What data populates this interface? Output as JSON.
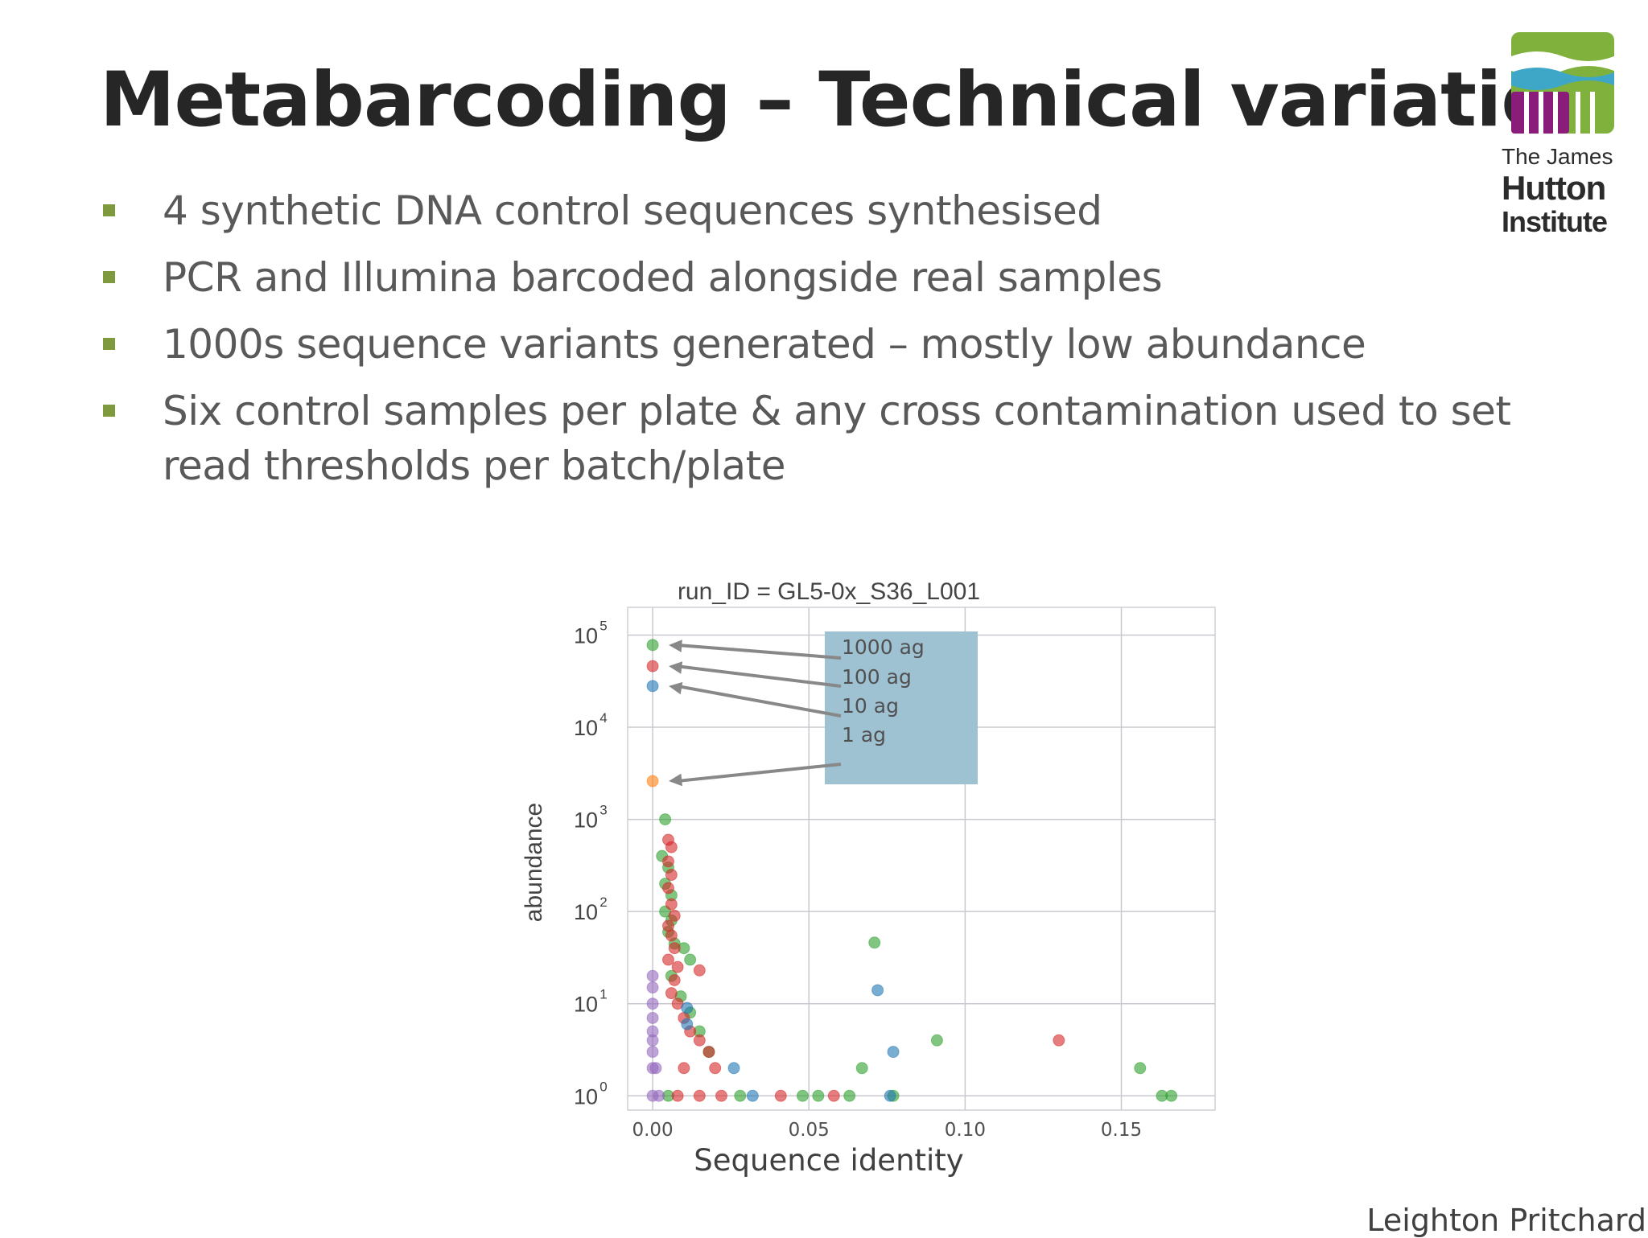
{
  "slide": {
    "title": "Metabarcoding – Technical variation",
    "bullets": [
      "4 synthetic DNA control sequences synthesised",
      "PCR and Illumina barcoded alongside real samples",
      "1000s sequence variants generated – mostly low abundance",
      "Six control samples per plate & any cross contamination used to set read thresholds per batch/plate"
    ],
    "author": "Leighton Pritchard",
    "logo": {
      "line1": "The James",
      "line2": "Hutton",
      "line3": "Institute",
      "colors": {
        "green": "#7fb13c",
        "blue": "#3ea7c8",
        "purple": "#8a1d7a"
      }
    },
    "bullet_color": "#7f9a3c"
  },
  "chart_data": {
    "type": "scatter",
    "title": "run_ID = GL5-0x_S36_L001",
    "xlabel": "Sequence identity",
    "ylabel": "abundance",
    "xlim": [
      -0.008,
      0.18
    ],
    "ylim": [
      0.7,
      200000
    ],
    "yscale": "log",
    "xticks": [
      0.0,
      0.05,
      0.1,
      0.15
    ],
    "xtick_labels": [
      "0.00",
      "0.05",
      "0.10",
      "0.15"
    ],
    "yticks": [
      1,
      10,
      100,
      1000,
      10000,
      100000
    ],
    "ytick_labels": [
      {
        "base": "10",
        "exp": "0"
      },
      {
        "base": "10",
        "exp": "1"
      },
      {
        "base": "10",
        "exp": "2"
      },
      {
        "base": "10",
        "exp": "3"
      },
      {
        "base": "10",
        "exp": "4"
      },
      {
        "base": "10",
        "exp": "5"
      }
    ],
    "grid": true,
    "series": [
      {
        "color": "#2ca02c",
        "points": [
          [
            0,
            78000
          ],
          [
            0.004,
            1000
          ],
          [
            0.003,
            400
          ],
          [
            0.005,
            300
          ],
          [
            0.004,
            200
          ],
          [
            0.006,
            150
          ],
          [
            0.004,
            100
          ],
          [
            0.006,
            80
          ],
          [
            0.005,
            60
          ],
          [
            0.007,
            45
          ],
          [
            0.01,
            40
          ],
          [
            0.012,
            30
          ],
          [
            0.006,
            20
          ],
          [
            0.009,
            12
          ],
          [
            0.012,
            8
          ],
          [
            0.015,
            5
          ],
          [
            0.018,
            3
          ],
          [
            0.005,
            1
          ],
          [
            0.028,
            1
          ],
          [
            0.048,
            1
          ],
          [
            0.053,
            1
          ],
          [
            0.063,
            1
          ],
          [
            0.067,
            2
          ],
          [
            0.071,
            46
          ],
          [
            0.077,
            1
          ],
          [
            0.091,
            4
          ],
          [
            0.156,
            2
          ],
          [
            0.163,
            1
          ],
          [
            0.166,
            1
          ]
        ]
      },
      {
        "color": "#d62728",
        "points": [
          [
            0,
            46000
          ],
          [
            0.005,
            600
          ],
          [
            0.006,
            500
          ],
          [
            0.005,
            350
          ],
          [
            0.006,
            250
          ],
          [
            0.005,
            180
          ],
          [
            0.006,
            120
          ],
          [
            0.007,
            90
          ],
          [
            0.005,
            70
          ],
          [
            0.006,
            55
          ],
          [
            0.007,
            40
          ],
          [
            0.005,
            30
          ],
          [
            0.008,
            25
          ],
          [
            0.015,
            23
          ],
          [
            0.007,
            18
          ],
          [
            0.006,
            13
          ],
          [
            0.008,
            10
          ],
          [
            0.01,
            7
          ],
          [
            0.012,
            5
          ],
          [
            0.015,
            4
          ],
          [
            0.018,
            3
          ],
          [
            0.01,
            2
          ],
          [
            0.02,
            2
          ],
          [
            0.008,
            1
          ],
          [
            0.015,
            1
          ],
          [
            0.022,
            1
          ],
          [
            0.041,
            1
          ],
          [
            0.058,
            1
          ],
          [
            0.13,
            4
          ]
        ]
      },
      {
        "color": "#1f77b4",
        "points": [
          [
            0,
            28000
          ],
          [
            0.011,
            9
          ],
          [
            0.011,
            6
          ],
          [
            0.026,
            2
          ],
          [
            0.032,
            1
          ],
          [
            0.072,
            14
          ],
          [
            0.076,
            1
          ],
          [
            0.077,
            3
          ]
        ]
      },
      {
        "color": "#ff7f0e",
        "points": [
          [
            0,
            2600
          ]
        ]
      },
      {
        "color": "#9467bd",
        "points": [
          [
            0,
            20
          ],
          [
            0,
            15
          ],
          [
            0,
            10
          ],
          [
            0,
            7
          ],
          [
            0,
            5
          ],
          [
            0,
            4
          ],
          [
            0,
            3
          ],
          [
            0,
            2
          ],
          [
            0,
            1
          ],
          [
            0.002,
            1
          ],
          [
            0.001,
            2
          ]
        ]
      }
    ],
    "annotations": {
      "box_color": "#9fc2d3",
      "labels": [
        "1000 ag",
        "100 ag",
        "10 ag",
        "1 ag"
      ],
      "arrow_targets": [
        [
          0,
          78000
        ],
        [
          0,
          46000
        ],
        [
          0,
          28000
        ],
        [
          0,
          2600
        ]
      ]
    }
  }
}
